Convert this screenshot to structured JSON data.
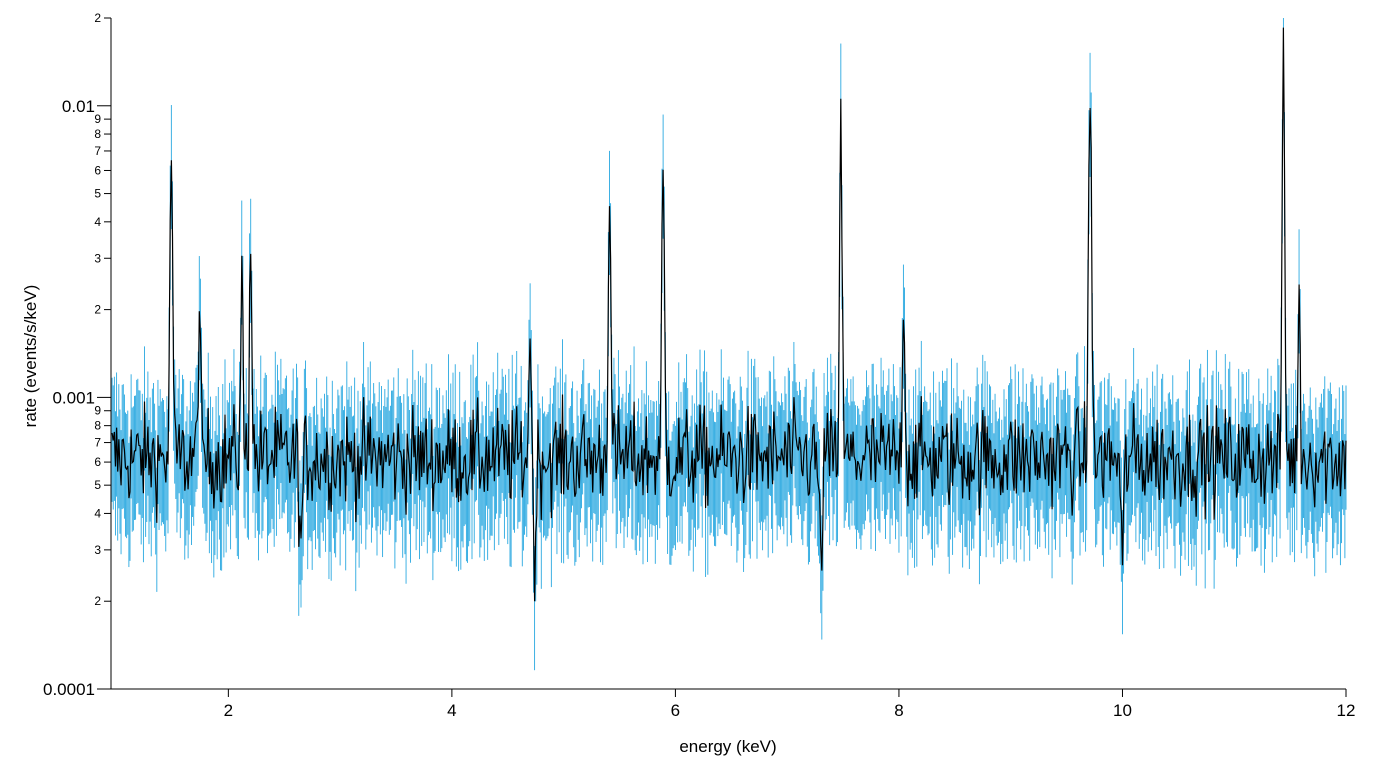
{
  "chart_data": {
    "type": "line",
    "title": "",
    "xlabel": "energy (keV)",
    "ylabel": "rate (events/s/keV)",
    "xlim": [
      0.95,
      12.0
    ],
    "ylim": [
      0.0001,
      0.02
    ],
    "yscale": "log",
    "grid": false,
    "x_ticks": [
      {
        "value": 2,
        "label": "2"
      },
      {
        "value": 4,
        "label": "4"
      },
      {
        "value": 6,
        "label": "6"
      },
      {
        "value": 8,
        "label": "8"
      },
      {
        "value": 10,
        "label": "10"
      },
      {
        "value": 12,
        "label": "12"
      }
    ],
    "y_major_ticks": [
      {
        "value": 0.0001,
        "label": "0.0001"
      },
      {
        "value": 0.001,
        "label": "0.001"
      },
      {
        "value": 0.01,
        "label": "0.01"
      }
    ],
    "y_minor_ticks": [
      {
        "value": 0.0002,
        "label": "2"
      },
      {
        "value": 0.0003,
        "label": "3"
      },
      {
        "value": 0.0004,
        "label": "4"
      },
      {
        "value": 0.0005,
        "label": "5"
      },
      {
        "value": 0.0006,
        "label": "6"
      },
      {
        "value": 0.0007,
        "label": "7"
      },
      {
        "value": 0.0008,
        "label": "8"
      },
      {
        "value": 0.0009,
        "label": "9"
      },
      {
        "value": 0.002,
        "label": "2"
      },
      {
        "value": 0.003,
        "label": "3"
      },
      {
        "value": 0.004,
        "label": "4"
      },
      {
        "value": 0.005,
        "label": "5"
      },
      {
        "value": 0.006,
        "label": "6"
      },
      {
        "value": 0.007,
        "label": "7"
      },
      {
        "value": 0.008,
        "label": "8"
      },
      {
        "value": 0.009,
        "label": "9"
      },
      {
        "value": 0.02,
        "label": "2"
      }
    ],
    "series": [
      {
        "role": "data with error bars",
        "color": "#29a8e0",
        "baseline_rate": 0.00062,
        "error_fraction": 0.42,
        "step_kev": 0.01,
        "peaks": [
          {
            "energy": 1.49,
            "rate": 0.007
          },
          {
            "energy": 1.74,
            "rate": 0.0022
          },
          {
            "energy": 2.12,
            "rate": 0.0025
          },
          {
            "energy": 2.2,
            "rate": 0.0038
          },
          {
            "energy": 4.7,
            "rate": 0.0019
          },
          {
            "energy": 5.41,
            "rate": 0.0057
          },
          {
            "energy": 5.89,
            "rate": 0.0057
          },
          {
            "energy": 7.48,
            "rate": 0.0078
          },
          {
            "energy": 8.04,
            "rate": 0.0025
          },
          {
            "energy": 9.71,
            "rate": 0.014
          },
          {
            "energy": 11.44,
            "rate": 0.012
          },
          {
            "energy": 11.58,
            "rate": 0.002
          }
        ],
        "dips": [
          {
            "energy": 2.65,
            "rate": 0.0003
          },
          {
            "energy": 4.74,
            "rate": 0.00028
          },
          {
            "energy": 7.3,
            "rate": 0.00026
          },
          {
            "energy": 10.0,
            "rate": 0.00026
          }
        ]
      },
      {
        "role": "model",
        "color": "#000000"
      }
    ]
  }
}
